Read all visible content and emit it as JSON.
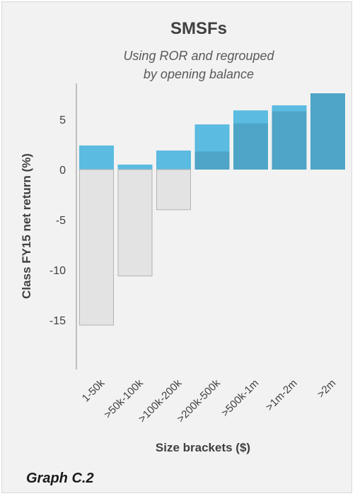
{
  "chart_data": {
    "type": "bar",
    "title": "SMSFs",
    "subtitle_lines": [
      "Using ROR and regrouped",
      "by opening balance"
    ],
    "xlabel": "Size brackets ($)",
    "ylabel": "Class FY15 net return (%)",
    "ylim": [
      -19,
      9
    ],
    "yticks": [
      5,
      0,
      -5,
      -10,
      -15
    ],
    "grid": false,
    "categories": [
      "1-50k",
      ">50k-100k",
      ">100k-200k",
      ">200k-500k",
      ">500k-1m",
      ">1m-2m",
      ">2m"
    ],
    "series": [
      {
        "values": [
          2.4,
          0.5,
          1.9,
          4.5,
          5.9,
          6.4,
          7.6
        ],
        "color": "#5bbbe0"
      },
      {
        "values": [
          -15.5,
          -10.6,
          -4.0,
          1.8,
          4.6,
          5.8,
          7.6
        ],
        "color": "#e3e3e3",
        "positive_color": "#4ea5c7"
      }
    ]
  },
  "footnote": "Graph C.2",
  "colors": {
    "background": "#f2f2f2",
    "axis": "#8c8c8c",
    "bar_edge": "#b3b3b3"
  }
}
